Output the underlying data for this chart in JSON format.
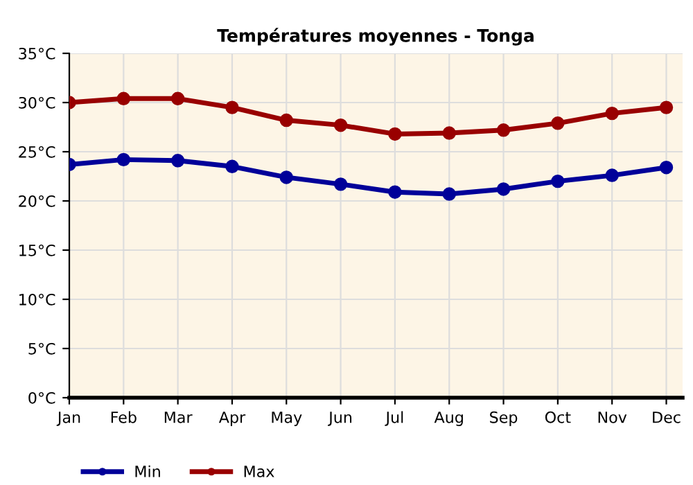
{
  "chart_data": {
    "type": "line",
    "title": "Températures moyennes - Tonga",
    "categories": [
      "Jan",
      "Feb",
      "Mar",
      "Apr",
      "May",
      "Jun",
      "Jul",
      "Aug",
      "Sep",
      "Oct",
      "Nov",
      "Dec"
    ],
    "series": [
      {
        "name": "Min",
        "color": "#000099",
        "values": [
          23.7,
          24.2,
          24.1,
          23.5,
          22.4,
          21.7,
          20.9,
          20.7,
          21.2,
          22.0,
          22.6,
          23.4
        ]
      },
      {
        "name": "Max",
        "color": "#990000",
        "values": [
          30.0,
          30.4,
          30.4,
          29.5,
          28.2,
          27.7,
          26.8,
          26.9,
          27.2,
          27.9,
          28.9,
          29.5
        ]
      }
    ],
    "ylim": [
      0,
      35
    ],
    "yticks": [
      {
        "value": 0,
        "label": "0°C"
      },
      {
        "value": 5,
        "label": "5°C"
      },
      {
        "value": 10,
        "label": "10°C"
      },
      {
        "value": 15,
        "label": "15°C"
      },
      {
        "value": 20,
        "label": "20°C"
      },
      {
        "value": 25,
        "label": "25°C"
      },
      {
        "value": 30,
        "label": "30°C"
      },
      {
        "value": 35,
        "label": "35°C"
      }
    ],
    "grid": true,
    "legend": "bottom left",
    "marker": "circle",
    "line_style": "solid"
  }
}
